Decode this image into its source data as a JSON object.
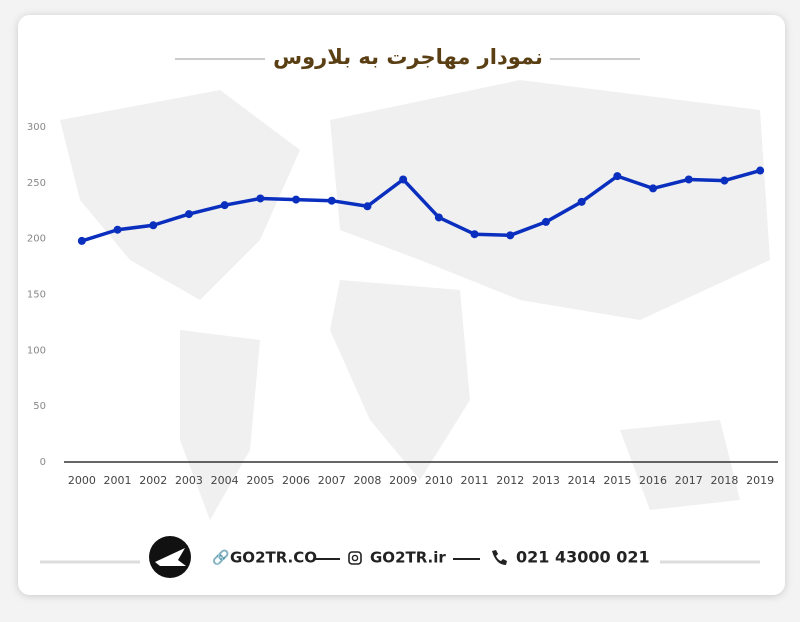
{
  "chart_data": {
    "type": "line",
    "title": "نمودار مهاجرت به بلاروس",
    "categories": [
      "2000",
      "2001",
      "2002",
      "2003",
      "2004",
      "2005",
      "2006",
      "2007",
      "2008",
      "2009",
      "2010",
      "2011",
      "2012",
      "2013",
      "2014",
      "2015",
      "2016",
      "2017",
      "2018",
      "2019"
    ],
    "series": [
      {
        "color": "#0a2fbf",
        "values": [
          198,
          208,
          212,
          222,
          230,
          236,
          235,
          234,
          229,
          253,
          219,
          204,
          203,
          215,
          233,
          256,
          245,
          253,
          252,
          261
        ]
      }
    ],
    "ylim": [
      0,
      300
    ],
    "yticks": [
      0,
      50,
      100,
      150,
      200,
      250,
      300
    ],
    "grid": false
  },
  "footer": {
    "website": "GO2TR.CO",
    "instagram": "GO2TR.ir",
    "phone": "021 43000 021"
  }
}
